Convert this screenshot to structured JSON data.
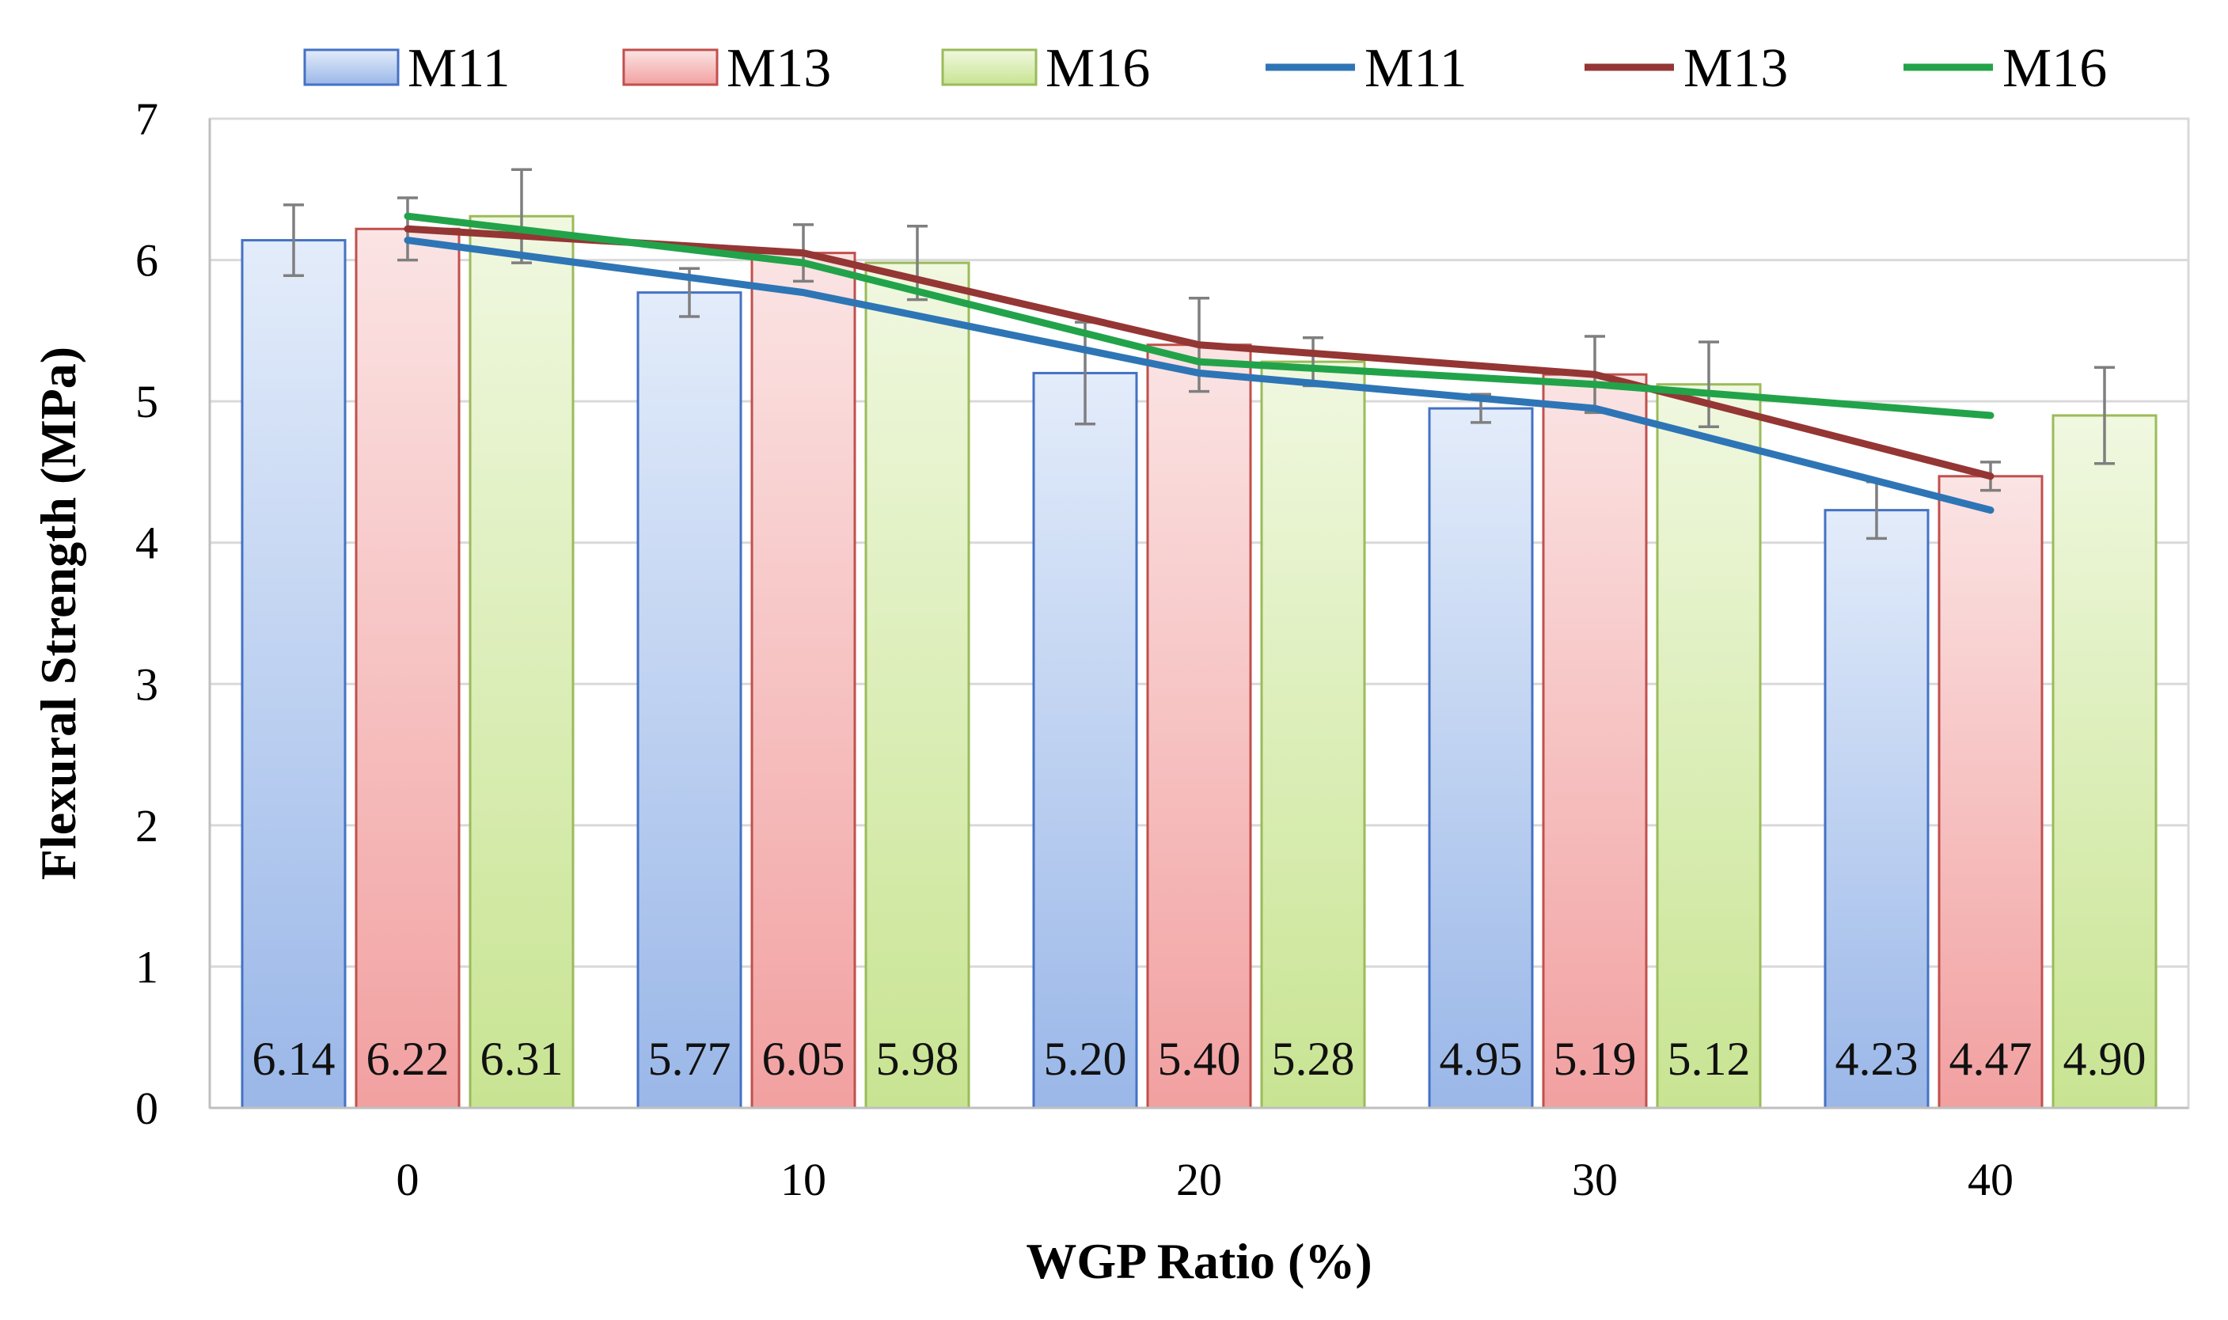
{
  "chart_data": {
    "type": "bar",
    "title": "",
    "xlabel": "WGP Ratio (%)",
    "ylabel": "Flexural  Strength (MPa)",
    "categories": [
      "0",
      "10",
      "20",
      "30",
      "40"
    ],
    "ylim": [
      0,
      7
    ],
    "yticks": [
      "0",
      "1",
      "2",
      "3",
      "4",
      "5",
      "6",
      "7"
    ],
    "grid": true,
    "legend_position": "top",
    "series": [
      {
        "name": "M11",
        "values": [
          6.14,
          5.77,
          5.2,
          4.95,
          4.23
        ],
        "labels": [
          "6.14",
          "5.77",
          "5.20",
          "4.95",
          "4.23"
        ],
        "errors": [
          0.25,
          0.17,
          0.36,
          0.1,
          0.2
        ],
        "color": "#4472c4",
        "light": "#e3ecfa",
        "dark": "#9ab7e8"
      },
      {
        "name": "M13",
        "values": [
          6.22,
          6.05,
          5.4,
          5.19,
          4.47
        ],
        "labels": [
          "6.22",
          "6.05",
          "5.40",
          "5.19",
          "4.47"
        ],
        "errors": [
          0.22,
          0.2,
          0.33,
          0.27,
          0.1
        ],
        "color": "#c0504d",
        "light": "#fbe4e4",
        "dark": "#f2a0a0"
      },
      {
        "name": "M16",
        "values": [
          6.31,
          5.98,
          5.28,
          5.12,
          4.9
        ],
        "labels": [
          "6.31",
          "5.98",
          "5.28",
          "5.12",
          "4.90"
        ],
        "errors": [
          0.33,
          0.26,
          0.17,
          0.3,
          0.34
        ],
        "color": "#9bbb59",
        "light": "#f0f8e0",
        "dark": "#c8e492"
      }
    ],
    "lines": [
      {
        "name": "M11",
        "values": [
          6.14,
          5.77,
          5.2,
          4.95,
          4.23
        ],
        "color": "#2e75b6"
      },
      {
        "name": "M13",
        "values": [
          6.22,
          6.05,
          5.4,
          5.19,
          4.47
        ],
        "color": "#943634"
      },
      {
        "name": "M16",
        "values": [
          6.31,
          5.98,
          5.28,
          5.12,
          4.9
        ],
        "color": "#22a34a"
      }
    ]
  }
}
